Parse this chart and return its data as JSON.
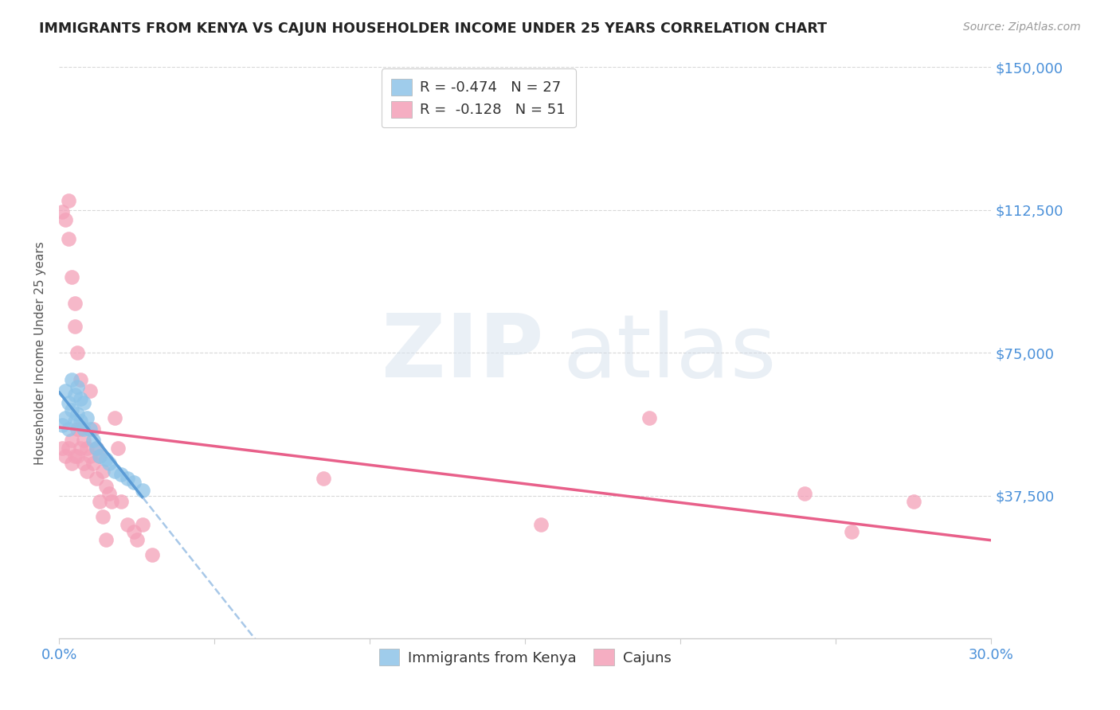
{
  "title": "IMMIGRANTS FROM KENYA VS CAJUN HOUSEHOLDER INCOME UNDER 25 YEARS CORRELATION CHART",
  "source": "Source: ZipAtlas.com",
  "ylabel": "Householder Income Under 25 years",
  "xmin": 0.0,
  "xmax": 0.3,
  "ymin": 0,
  "ymax": 150000,
  "yticks": [
    0,
    37500,
    75000,
    112500,
    150000
  ],
  "ytick_labels": [
    "",
    "$37,500",
    "$75,000",
    "$112,500",
    "$150,000"
  ],
  "xticks": [
    0.0,
    0.05,
    0.1,
    0.15,
    0.2,
    0.25,
    0.3
  ],
  "legend_r1_text": "R = -0.474   N = 27",
  "legend_r2_text": "R =  -0.128   N = 51",
  "kenya_color": "#8ec4e8",
  "cajun_color": "#f4a0b8",
  "trend_kenya_solid_color": "#5b9bd5",
  "trend_cajun_solid_color": "#e8608a",
  "trend_kenya_dashed_color": "#a8c8e8",
  "kenya_x": [
    0.001,
    0.002,
    0.002,
    0.003,
    0.003,
    0.004,
    0.004,
    0.005,
    0.005,
    0.006,
    0.006,
    0.007,
    0.007,
    0.008,
    0.008,
    0.009,
    0.01,
    0.011,
    0.012,
    0.013,
    0.015,
    0.016,
    0.018,
    0.02,
    0.022,
    0.024,
    0.027
  ],
  "kenya_y": [
    56000,
    65000,
    58000,
    62000,
    55000,
    68000,
    60000,
    64000,
    57000,
    66000,
    59000,
    63000,
    57000,
    62000,
    55000,
    58000,
    55000,
    52000,
    50000,
    48000,
    47000,
    46000,
    44000,
    43000,
    42000,
    41000,
    39000
  ],
  "cajun_x": [
    0.001,
    0.001,
    0.002,
    0.002,
    0.003,
    0.003,
    0.003,
    0.004,
    0.004,
    0.004,
    0.005,
    0.005,
    0.005,
    0.006,
    0.006,
    0.006,
    0.007,
    0.007,
    0.007,
    0.008,
    0.008,
    0.009,
    0.009,
    0.01,
    0.01,
    0.011,
    0.011,
    0.012,
    0.012,
    0.013,
    0.013,
    0.014,
    0.014,
    0.015,
    0.015,
    0.016,
    0.017,
    0.018,
    0.019,
    0.02,
    0.022,
    0.024,
    0.025,
    0.027,
    0.03,
    0.085,
    0.155,
    0.19,
    0.24,
    0.255,
    0.275
  ],
  "cajun_y": [
    50000,
    112000,
    110000,
    48000,
    115000,
    105000,
    50000,
    95000,
    52000,
    46000,
    88000,
    82000,
    48000,
    75000,
    55000,
    48000,
    68000,
    55000,
    50000,
    52000,
    46000,
    50000,
    44000,
    65000,
    48000,
    55000,
    46000,
    50000,
    42000,
    48000,
    36000,
    44000,
    32000,
    40000,
    26000,
    38000,
    36000,
    58000,
    50000,
    36000,
    30000,
    28000,
    26000,
    30000,
    22000,
    42000,
    30000,
    58000,
    38000,
    28000,
    36000
  ],
  "trend_kenya_x_solid_start": 0.0,
  "trend_kenya_x_solid_end": 0.027,
  "trend_kenya_x_dash_start": 0.027,
  "trend_kenya_x_dash_end": 0.155,
  "trend_cajun_x_start": 0.0,
  "trend_cajun_x_end": 0.3
}
